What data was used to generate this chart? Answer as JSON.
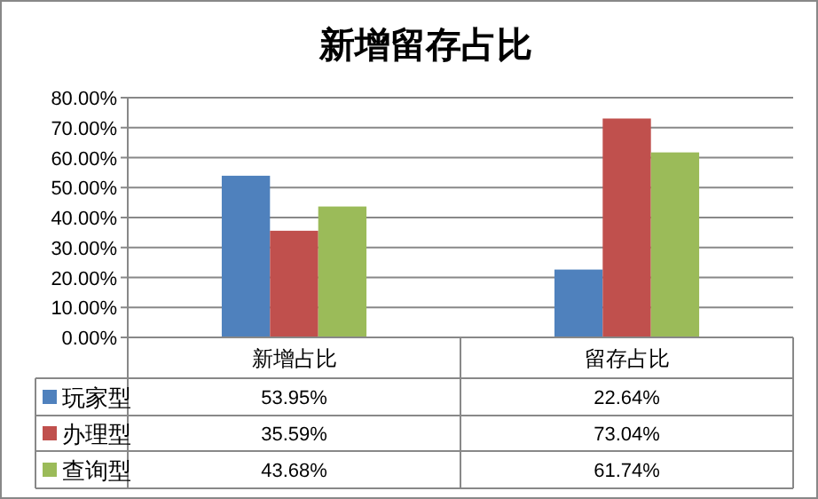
{
  "chart_data": {
    "type": "bar",
    "title": "新增留存占比",
    "categories": [
      "新增占比",
      "留存占比"
    ],
    "series": [
      {
        "name": "玩家型",
        "color": "#4f81bd",
        "values": [
          53.95,
          22.64
        ],
        "value_labels": [
          "53.95%",
          "22.64%"
        ]
      },
      {
        "name": "办理型",
        "color": "#c0504d",
        "values": [
          35.59,
          73.04
        ],
        "value_labels": [
          "35.59%",
          "73.04%"
        ]
      },
      {
        "name": "查询型",
        "color": "#9bbb59",
        "values": [
          43.68,
          61.74
        ],
        "value_labels": [
          "43.68%",
          "61.74%"
        ]
      }
    ],
    "ylim": [
      0,
      80
    ],
    "yticks": [
      {
        "value": 0,
        "label": "0.00%"
      },
      {
        "value": 10,
        "label": "10.00%"
      },
      {
        "value": 20,
        "label": "20.00%"
      },
      {
        "value": 30,
        "label": "30.00%"
      },
      {
        "value": 40,
        "label": "40.00%"
      },
      {
        "value": 50,
        "label": "50.00%"
      },
      {
        "value": 60,
        "label": "60.00%"
      },
      {
        "value": 70,
        "label": "70.00%"
      },
      {
        "value": 80,
        "label": "80.00%"
      }
    ],
    "grid": "y",
    "legend": "bottom"
  }
}
